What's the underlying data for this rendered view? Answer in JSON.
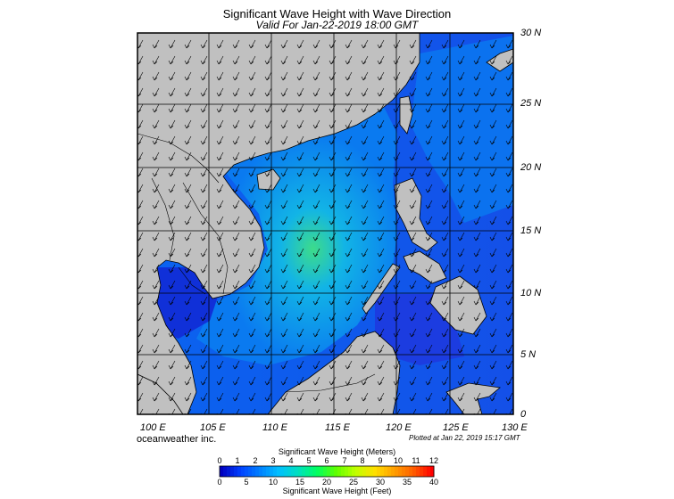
{
  "title": "Significant Wave Height with Wave Direction",
  "subtitle": "Valid For Jan-22-2019 18:00 GMT",
  "credit": "oceanweather inc.",
  "plotted": "Plotted at Jan 22, 2019 15:17 GMT",
  "lat_labels": [
    "30 N",
    "25 N",
    "20 N",
    "15 N",
    "10 N",
    "5 N",
    "0"
  ],
  "lon_labels": [
    "100 E",
    "105 E",
    "110 E",
    "115 E",
    "120 E",
    "125 E",
    "130 E"
  ],
  "colorbar": {
    "title_meters": "Significant Wave Height (Meters)",
    "title_feet": "Significant Wave Height (Feet)",
    "meter_ticks": [
      "0",
      "1",
      "2",
      "3",
      "4",
      "5",
      "6",
      "7",
      "8",
      "9",
      "10",
      "11",
      "12"
    ],
    "feet_ticks": [
      "0",
      "5",
      "10",
      "15",
      "20",
      "25",
      "30",
      "35",
      "40"
    ],
    "colors": [
      "#0000c0",
      "#0040ff",
      "#0080ff",
      "#00c0ff",
      "#00e0c0",
      "#00ff60",
      "#60ff00",
      "#c0ff00",
      "#ffe000",
      "#ffa000",
      "#ff6000",
      "#ff0000"
    ]
  },
  "map_colors": {
    "land": "#c0c0c0",
    "ocean_deep": "#1432e6",
    "ocean_mid": "#0a8cff",
    "ocean_high": "#22dd88"
  }
}
